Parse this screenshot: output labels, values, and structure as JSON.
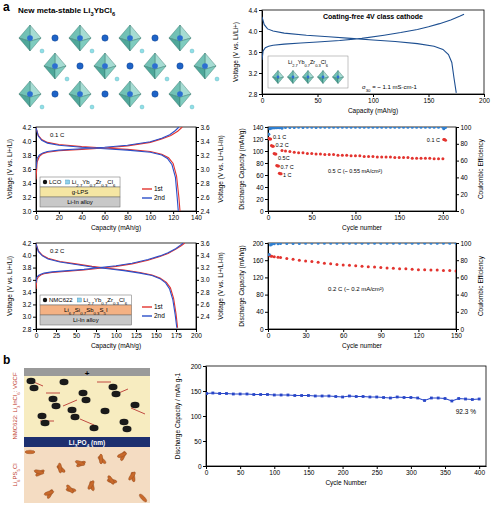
{
  "chart_data": [
    {
      "type": "line",
      "title": "Coating-free 4V class cathode",
      "xlabel": "Capacity (mAh/g)",
      "ylabel": "Voltage (V vs. Li/Li+)",
      "xlim": [
        0,
        200
      ],
      "xticks": [
        0,
        50,
        100,
        150,
        200
      ],
      "ylim": [
        2.8,
        4.4
      ],
      "yticks": [
        2.8,
        3.2,
        3.6,
        {
          "value": 4,
          "label": "4.0"
        },
        4.4
      ],
      "annotations": [
        "σ30 = ~ 1.1 mS·cm-1"
      ],
      "inset_labels": [
        "Li2.7Yb0.7Zr0.3Cl6"
      ],
      "series": [
        {
          "color": "#1d4f91",
          "x": [
            0,
            1,
            3,
            6,
            10,
            20,
            35,
            50,
            70,
            90,
            110,
            125,
            140,
            150,
            160,
            170,
            178,
            182,
            null,
            0,
            2,
            5,
            10,
            20,
            40,
            60,
            80,
            100,
            120,
            140,
            155,
            163,
            168,
            171,
            173,
            175
          ],
          "values": [
            3.45,
            3.62,
            3.68,
            3.71,
            3.73,
            3.75,
            3.77,
            3.79,
            3.82,
            3.86,
            3.92,
            3.97,
            4.03,
            4.08,
            4.14,
            4.21,
            4.28,
            4.32,
            null,
            4.27,
            4.12,
            4.04,
            4.0,
            3.96,
            3.92,
            3.89,
            3.86,
            3.83,
            3.8,
            3.76,
            3.71,
            3.65,
            3.55,
            3.4,
            3.1,
            2.82
          ]
        }
      ]
    },
    {
      "type": "line",
      "xlabel": "Capacity (mAh/g)",
      "ylabel": "Voltage (V vs. Li+/Li)",
      "y2label": "Voltage (V vs. Li+/Li-In)",
      "xlim": [
        0,
        140
      ],
      "xticks": [
        0,
        20,
        40,
        60,
        80,
        100,
        120,
        140
      ],
      "ylim": [
        3,
        4.2
      ],
      "yticks": [
        {
          "value": 3,
          "label": "3.0"
        },
        3.2,
        3.4,
        3.6,
        3.8,
        {
          "value": 4,
          "label": "4.0"
        },
        4.2
      ],
      "y2lim": [
        2.4,
        3.6
      ],
      "y2ticks": [
        2.4,
        2.6,
        2.8,
        {
          "value": 3,
          "label": "3.0"
        },
        3.2,
        3.4,
        3.6
      ],
      "legend": "lower right",
      "annotations": [
        "0.1 C"
      ],
      "inset_labels": [
        "LCO",
        "Li2.7Yb0.7Zr0.3Cl6",
        "g-LPS",
        "Li-In alloy"
      ],
      "series": [
        {
          "name": "1st",
          "color": "#e3342f",
          "x": [
            0,
            1,
            3,
            6,
            10,
            20,
            40,
            60,
            80,
            100,
            110,
            118,
            124,
            128,
            null,
            0,
            2,
            5,
            10,
            20,
            40,
            60,
            80,
            100,
            110,
            116,
            120,
            123,
            125,
            126
          ],
          "values": [
            3.45,
            3.7,
            3.78,
            3.82,
            3.84,
            3.86,
            3.88,
            3.9,
            3.93,
            3.98,
            4.03,
            4.08,
            4.14,
            4.2,
            null,
            4.19,
            4.08,
            4.02,
            3.98,
            3.95,
            3.92,
            3.9,
            3.88,
            3.85,
            3.81,
            3.76,
            3.68,
            3.5,
            3.2,
            3.0
          ]
        },
        {
          "name": "2nd",
          "color": "#2b4fc9",
          "x": [
            0,
            1,
            3,
            6,
            10,
            20,
            40,
            60,
            80,
            100,
            110,
            117,
            122,
            125,
            null,
            0,
            2,
            5,
            10,
            20,
            40,
            60,
            80,
            100,
            110,
            115,
            119,
            122,
            123.5,
            124.5
          ],
          "values": [
            3.6,
            3.75,
            3.8,
            3.83,
            3.85,
            3.87,
            3.89,
            3.91,
            3.94,
            3.99,
            4.04,
            4.09,
            4.15,
            4.2,
            null,
            4.19,
            4.07,
            4.01,
            3.97,
            3.94,
            3.91,
            3.89,
            3.87,
            3.84,
            3.8,
            3.75,
            3.66,
            3.48,
            3.2,
            3.0
          ]
        }
      ]
    },
    {
      "type": "scatter",
      "xlabel": "Cycle number",
      "ylabel": "Discharge Capacity (mAh/g)",
      "y2label": "Coulombic Efficiency",
      "xlim": [
        0,
        215
      ],
      "xticks": [
        0,
        50,
        100,
        150,
        200
      ],
      "ylim": [
        0,
        140
      ],
      "yticks": [
        0,
        20,
        40,
        60,
        80,
        100,
        120,
        140
      ],
      "y2lim": [
        0,
        100
      ],
      "y2ticks": [
        0,
        20,
        40,
        60,
        80,
        100
      ],
      "annotations": [
        "0.1 C",
        "0.2 C",
        "0.5C",
        "0.7 C",
        "1 C",
        "0.5 C (~ 0.55 mA/cm²)",
        "0.1 C"
      ],
      "series": [
        {
          "color": "#e3342f",
          "marker": "circle",
          "x": [
            1,
            2,
            3,
            4,
            5,
            6,
            7,
            8,
            9,
            10,
            11,
            12,
            13,
            14,
            15,
            16,
            20,
            25,
            30,
            35,
            40,
            45,
            50,
            55,
            60,
            65,
            70,
            75,
            80,
            85,
            90,
            95,
            100,
            105,
            110,
            115,
            120,
            125,
            130,
            135,
            140,
            145,
            150,
            155,
            160,
            165,
            170,
            175,
            180,
            185,
            190,
            195,
            200,
            201,
            202,
            203
          ],
          "values": [
            121,
            120,
            120,
            109,
            108,
            108,
            96,
            95,
            95,
            76,
            75,
            75,
            63,
            62,
            62,
            101,
            100,
            99,
            98,
            97,
            97,
            96,
            96,
            95,
            95,
            94,
            94,
            94,
            93,
            93,
            93,
            92,
            92,
            92,
            91,
            91,
            91,
            90,
            90,
            90,
            90,
            89,
            89,
            89,
            89,
            88,
            88,
            88,
            88,
            88,
            87,
            87,
            87,
            119,
            119,
            118
          ]
        },
        {
          "color": "#2f7fd0",
          "marker": "circle",
          "axis": "y2",
          "x": [
            1,
            2,
            3,
            4,
            5,
            6,
            7,
            8,
            9,
            10,
            11,
            12,
            13,
            14,
            15,
            16,
            20,
            25,
            30,
            35,
            40,
            45,
            50,
            55,
            60,
            65,
            70,
            75,
            80,
            85,
            90,
            95,
            100,
            105,
            110,
            115,
            120,
            125,
            130,
            135,
            140,
            145,
            150,
            155,
            160,
            165,
            170,
            175,
            180,
            185,
            190,
            195,
            200,
            201,
            202,
            203
          ],
          "values": [
            91.5,
            97.8,
            98.6,
            98.9,
            99.1,
            99.2,
            99.0,
            99.2,
            99.3,
            99.1,
            99.3,
            99.4,
            99.2,
            99.4,
            99.4,
            98.4,
            99.4,
            99.5,
            99.5,
            99.6,
            99.5,
            99.6,
            99.6,
            99.5,
            99.6,
            99.7,
            99.6,
            99.6,
            99.7,
            99.6,
            99.7,
            99.7,
            99.6,
            99.7,
            99.7,
            99.6,
            99.7,
            99.7,
            99.7,
            99.6,
            99.7,
            99.7,
            99.7,
            99.8,
            99.7,
            99.7,
            99.7,
            99.8,
            99.7,
            99.7,
            99.8,
            99.7,
            99.7,
            97.9,
            99.1,
            99.3
          ]
        }
      ]
    },
    {
      "type": "line",
      "xlabel": "Capacity (mAh/g)",
      "ylabel": "Voltage (V vs. Li+/Li)",
      "y2label": "Voltage (V vs. Li+/Li-In)",
      "xlim": [
        0,
        200
      ],
      "xticks": [
        0,
        25,
        50,
        75,
        100,
        125,
        150,
        175,
        200
      ],
      "ylim": [
        2.8,
        4.2
      ],
      "yticks": [
        2.8,
        {
          "value": 3,
          "label": "3.0"
        },
        3.2,
        3.4,
        3.6,
        3.8,
        {
          "value": 4,
          "label": "4.0"
        },
        4.2
      ],
      "y2lim": [
        2.2,
        3.6
      ],
      "y2ticks": [
        2.4,
        2.6,
        2.8,
        {
          "value": 3,
          "label": "3.0"
        },
        3.2,
        3.4,
        3.6
      ],
      "legend": "lower right",
      "annotations": [
        "0.2 C"
      ],
      "inset_labels": [
        "NMC622",
        "Li2.7Yb0.7Zr0.3Cl6",
        "Li6.7Si0.7Sb0.3S5I",
        "Li-In alloy"
      ],
      "series": [
        {
          "name": "1st",
          "color": "#e3342f",
          "x": [
            0,
            1,
            3,
            6,
            10,
            20,
            40,
            60,
            80,
            100,
            120,
            140,
            155,
            165,
            175,
            182,
            186,
            null,
            0,
            3,
            8,
            15,
            30,
            50,
            70,
            90,
            110,
            130,
            145,
            155,
            163,
            168,
            172,
            175,
            177
          ],
          "values": [
            3.45,
            3.6,
            3.65,
            3.68,
            3.7,
            3.72,
            3.74,
            3.76,
            3.79,
            3.82,
            3.86,
            3.92,
            3.98,
            4.03,
            4.1,
            4.16,
            4.2,
            null,
            4.19,
            4.07,
            4.0,
            3.95,
            3.9,
            3.86,
            3.82,
            3.79,
            3.76,
            3.72,
            3.68,
            3.63,
            3.56,
            3.47,
            3.3,
            3.05,
            2.82
          ]
        },
        {
          "name": "2nd",
          "color": "#2b4fc9",
          "x": [
            0,
            1,
            3,
            6,
            10,
            20,
            40,
            60,
            80,
            100,
            120,
            140,
            155,
            165,
            175,
            181,
            184,
            null,
            0,
            3,
            8,
            15,
            30,
            50,
            70,
            90,
            110,
            130,
            145,
            155,
            162,
            167,
            171,
            174,
            176
          ],
          "values": [
            3.55,
            3.64,
            3.67,
            3.69,
            3.71,
            3.73,
            3.75,
            3.77,
            3.8,
            3.83,
            3.87,
            3.93,
            3.99,
            4.04,
            4.11,
            4.17,
            4.2,
            null,
            4.19,
            4.06,
            3.99,
            3.94,
            3.89,
            3.85,
            3.81,
            3.78,
            3.75,
            3.71,
            3.67,
            3.62,
            3.55,
            3.45,
            3.28,
            3.03,
            2.82
          ]
        }
      ]
    },
    {
      "type": "scatter",
      "xlabel": "Cycle number",
      "ylabel": "Discharge Capacity (mAh/g)",
      "y2label": "Coulombic Efficiency",
      "xlim": [
        0,
        150
      ],
      "xticks": [
        0,
        30,
        60,
        90,
        120,
        150
      ],
      "ylim": [
        0,
        200
      ],
      "yticks": [
        0,
        40,
        80,
        120,
        160,
        200
      ],
      "y2lim": [
        0,
        100
      ],
      "y2ticks": [
        0,
        20,
        40,
        60,
        80,
        100
      ],
      "annotations": [
        "0.2 C (~ 0.2 mA/cm²)"
      ],
      "series": [
        {
          "color": "#e3342f",
          "marker": "circle",
          "x": [
            1,
            2,
            3,
            5,
            8,
            10,
            15,
            20,
            25,
            30,
            35,
            40,
            45,
            50,
            55,
            60,
            65,
            70,
            75,
            80,
            85,
            90,
            95,
            100,
            105,
            110,
            115,
            120,
            125,
            130,
            135,
            140,
            145,
            150
          ],
          "values": [
            172,
            170,
            169,
            168,
            167,
            166,
            164,
            162,
            160,
            158,
            157,
            155,
            153,
            152,
            150,
            149,
            148,
            147,
            146,
            145,
            144,
            143,
            142,
            141,
            140,
            140,
            139,
            138,
            138,
            137,
            137,
            136,
            136,
            135
          ]
        },
        {
          "color": "#2f7fd0",
          "marker": "circle",
          "axis": "y2",
          "x": [
            1,
            2,
            3,
            5,
            8,
            10,
            15,
            20,
            25,
            30,
            35,
            40,
            45,
            50,
            55,
            60,
            65,
            70,
            75,
            80,
            85,
            90,
            95,
            100,
            105,
            110,
            115,
            120,
            125,
            130,
            135,
            140,
            145,
            150
          ],
          "values": [
            86.5,
            97.8,
            98.6,
            99.0,
            99.2,
            99.3,
            99.4,
            99.5,
            99.5,
            99.6,
            99.6,
            99.6,
            99.7,
            99.6,
            99.7,
            99.7,
            99.7,
            99.7,
            99.8,
            99.7,
            99.7,
            99.8,
            99.7,
            99.8,
            99.8,
            99.7,
            99.8,
            99.8,
            99.8,
            99.7,
            99.8,
            99.8,
            99.8,
            99.8
          ]
        }
      ]
    },
    {
      "type": "line",
      "xlabel": "Cycle Number",
      "ylabel": "Discharge Capacity / mAh g-1",
      "xlim": [
        0,
        410
      ],
      "xticks": [
        0,
        50,
        100,
        150,
        200,
        250,
        300,
        350,
        400
      ],
      "ylim": [
        0,
        200
      ],
      "yticks": [
        0,
        50,
        100,
        150,
        200
      ],
      "annotations": [
        "92.3 %"
      ],
      "series": [
        {
          "color": "#2846c8",
          "marker": "square",
          "x": [
            1,
            10,
            20,
            30,
            40,
            50,
            60,
            70,
            80,
            90,
            100,
            110,
            120,
            130,
            140,
            150,
            160,
            170,
            180,
            190,
            200,
            210,
            220,
            230,
            240,
            250,
            260,
            270,
            280,
            290,
            300,
            310,
            320,
            330,
            340,
            350,
            360,
            370,
            380,
            390,
            400
          ],
          "values": [
            145,
            146,
            145,
            145,
            144,
            144,
            144,
            143,
            143,
            143,
            142,
            142,
            142,
            141,
            141,
            141,
            140,
            140,
            140,
            139,
            138,
            140,
            139,
            139,
            138,
            138,
            137,
            136,
            138,
            137,
            137,
            136,
            131,
            136,
            136,
            135,
            130,
            135,
            134,
            133,
            134
          ]
        }
      ]
    }
  ],
  "figure": {
    "panel_labels": [
      "a",
      "b"
    ],
    "structure": {
      "title": "New meta-stable Li3YbCl6"
    },
    "schematic": {
      "terminal": "+",
      "labels": [
        "NMC622: Li3InCl6: VGCF",
        "Li3PO4 (nm)",
        "Li6PS5Cl"
      ]
    }
  }
}
